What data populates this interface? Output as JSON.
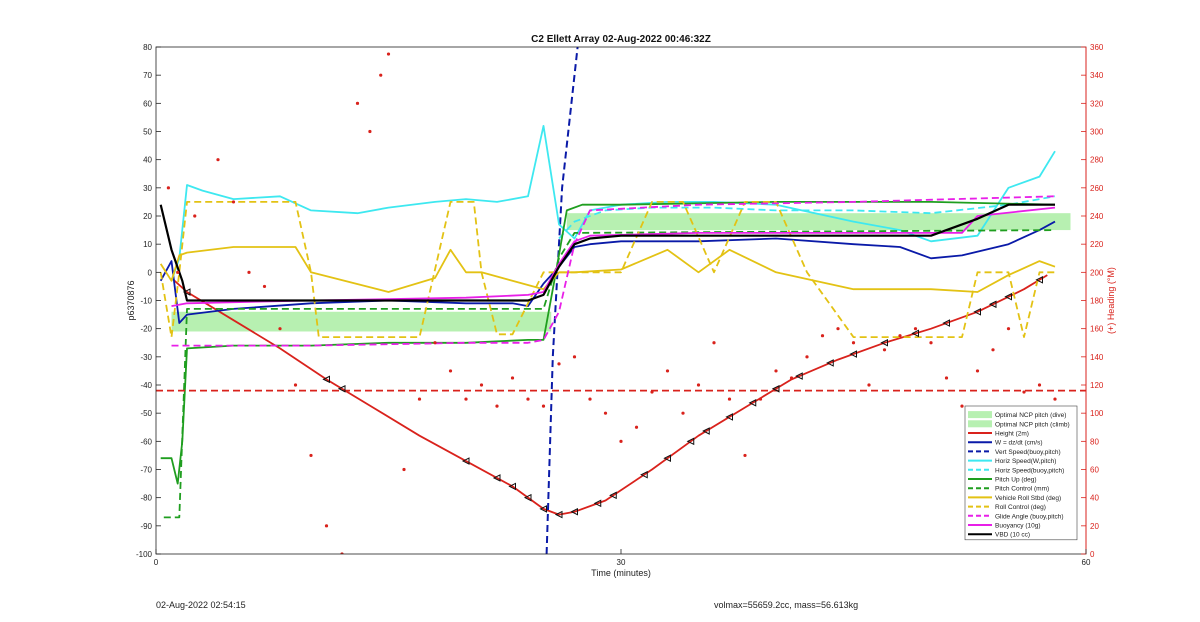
{
  "footer": {
    "left": "02-Aug-2022 02:54:15",
    "right": "volmax=55659.2cc, mass=56.613kg"
  },
  "chart_data": {
    "type": "line",
    "title": "C2 Ellett Array 02-Aug-2022 00:46:32Z",
    "xlabel": "Time (minutes)",
    "ylabel": "p6370876",
    "y2label": "(+) Heading (°M)",
    "xlim": [
      0,
      60
    ],
    "ylim": [
      -100,
      80
    ],
    "y2lim": [
      0,
      360
    ],
    "xticks": [
      0,
      30,
      60
    ],
    "yticks": [
      -100,
      -90,
      -80,
      -70,
      -60,
      -50,
      -40,
      -30,
      -20,
      -10,
      0,
      10,
      20,
      30,
      40,
      50,
      60,
      70,
      80
    ],
    "y2ticks": [
      0,
      20,
      40,
      60,
      80,
      100,
      120,
      140,
      160,
      180,
      200,
      220,
      240,
      260,
      280,
      300,
      320,
      340,
      360
    ],
    "grid": false,
    "legend_position": "bottom-right",
    "colors": {
      "left_axis": "#222222",
      "right_axis": "#d9221c",
      "green_band": "#b7f0b1",
      "red": "#d9221c",
      "blue": "#0a1aa8",
      "cyan": "#3ee8f0",
      "green": "#1f9e1f",
      "yellow": "#e3c214",
      "magenta": "#e81fe8",
      "black": "#000000"
    },
    "bands": [
      {
        "name": "Optimal NCP pitch (dive)",
        "x": [
          1,
          25.5
        ],
        "y": [
          -21,
          -14
        ]
      },
      {
        "name": "Optimal NCP pitch (climb)",
        "x": [
          26.5,
          59
        ],
        "y": [
          15,
          21
        ]
      }
    ],
    "series": [
      {
        "name": "Height (2m)",
        "style": "solid",
        "color": "#d9221c",
        "axis": "left",
        "x": [
          1,
          2,
          5,
          8,
          11,
          14,
          17,
          20,
          23,
          25,
          26,
          27,
          29,
          32,
          35,
          38,
          41,
          44,
          47,
          50,
          53,
          56,
          57.5
        ],
        "y": [
          -2,
          -7,
          -17,
          -27,
          -38,
          -48,
          -58,
          -67,
          -76,
          -84,
          -86,
          -85,
          -81,
          -70,
          -58,
          -48,
          -38,
          -31,
          -25,
          -20,
          -14,
          -6,
          -1
        ]
      },
      {
        "name": "W = dz/dt (cm/s)",
        "style": "solid",
        "color": "#0a1aa8",
        "axis": "left",
        "x": [
          0.3,
          1,
          1.5,
          2,
          5,
          10,
          15,
          20,
          23,
          24,
          25,
          26,
          27,
          28,
          30,
          35,
          40,
          45,
          48,
          50,
          52,
          55,
          57,
          58
        ],
        "y": [
          -3,
          4,
          -18,
          -15,
          -13,
          -11,
          -10,
          -11,
          -11,
          -12,
          -4,
          2,
          9,
          10,
          11,
          11,
          12,
          10,
          9,
          5,
          6,
          10,
          15,
          18
        ]
      },
      {
        "name": "Vert Speed(buoy,pitch)",
        "style": "dashed",
        "color": "#0a1aa8",
        "axis": "left",
        "x": [
          25.2,
          25.6,
          26.2,
          27.2
        ],
        "y": [
          -100,
          -30,
          30,
          80
        ]
      },
      {
        "name": "Horiz Speed(W,pitch)",
        "style": "solid",
        "color": "#3ee8f0",
        "axis": "left",
        "x": [
          1,
          1.5,
          2,
          3,
          5,
          8,
          10,
          13,
          15,
          18,
          20,
          22,
          24,
          25,
          26,
          27,
          28,
          30,
          33,
          36,
          40,
          45,
          48,
          50,
          53,
          55,
          57,
          58
        ],
        "y": [
          -3,
          5,
          31,
          29,
          26,
          27,
          22,
          21,
          23,
          25,
          26,
          25,
          27,
          52,
          17,
          12,
          22,
          24,
          25,
          25,
          24,
          18,
          15,
          11,
          13,
          30,
          34,
          43
        ]
      },
      {
        "name": "Horiz Speed(buoy,pitch)",
        "style": "dashed",
        "color": "#3ee8f0",
        "axis": "left",
        "x": [
          26,
          27,
          29,
          32,
          36,
          40,
          45,
          50,
          55,
          58
        ],
        "y": [
          12,
          18,
          22,
          23,
          23,
          22,
          22,
          21,
          24,
          27
        ]
      },
      {
        "name": "Pitch Up (deg)",
        "style": "solid",
        "color": "#1f9e1f",
        "axis": "left",
        "x": [
          0.3,
          1,
          1.4,
          1.7,
          2,
          5,
          10,
          15,
          20,
          24,
          25,
          25.8,
          26.5,
          27.5,
          30,
          40,
          50,
          58
        ],
        "y": [
          -66,
          -66,
          -75,
          -60,
          -27,
          -26,
          -26,
          -25,
          -25,
          -24,
          -24,
          0,
          22,
          24,
          24,
          25,
          25,
          24
        ]
      },
      {
        "name": "Pitch Control (mm)",
        "style": "dashed",
        "color": "#1f9e1f",
        "axis": "left",
        "x": [
          0.5,
          1.5,
          2,
          25,
          26,
          27,
          58
        ],
        "y": [
          -87,
          -87,
          -13,
          -13,
          5,
          14,
          15
        ]
      },
      {
        "name": "Vehicle Roll Stbd (deg)",
        "style": "solid",
        "color": "#e3c214",
        "axis": "left",
        "x": [
          0.3,
          1,
          1.5,
          2,
          5,
          9,
          10,
          15,
          18,
          19,
          20,
          21,
          25,
          26,
          27,
          30,
          33,
          35,
          37,
          40,
          45,
          48,
          50,
          53,
          55,
          57,
          58
        ],
        "y": [
          3,
          -3,
          6,
          7,
          9,
          9,
          0,
          -7,
          -2,
          8,
          0,
          0,
          -6,
          0,
          0,
          1,
          8,
          0,
          8,
          0,
          -6,
          -6,
          -6,
          -7,
          -1,
          4,
          2
        ]
      },
      {
        "name": "Roll Control (deg)",
        "style": "dashed",
        "color": "#e3c214",
        "axis": "left",
        "x": [
          0.3,
          1,
          1.5,
          2,
          9,
          10,
          10.5,
          17,
          19,
          20.5,
          21,
          22,
          23,
          25,
          26,
          27,
          30,
          32,
          34,
          36,
          38,
          40,
          42,
          45,
          48,
          50,
          52,
          53,
          55,
          56,
          57,
          58
        ],
        "y": [
          0,
          -23,
          0,
          25,
          25,
          0,
          -23,
          -23,
          25,
          25,
          0,
          -22,
          -22,
          0,
          0,
          0,
          0,
          25,
          25,
          0,
          25,
          25,
          0,
          -23,
          -23,
          -23,
          -23,
          0,
          0,
          -23,
          0,
          0
        ]
      },
      {
        "name": "Glide Angle (buoy,pitch)",
        "style": "dashed",
        "color": "#e81fe8",
        "axis": "left",
        "x": [
          1,
          2,
          10,
          20,
          24,
          25,
          26,
          27,
          28,
          35,
          45,
          58
        ],
        "y": [
          -26,
          -26,
          -26,
          -25,
          -25,
          -24,
          -14,
          10,
          22,
          24,
          25,
          27
        ]
      },
      {
        "name": "Buoyancy (10g)",
        "style": "solid",
        "color": "#e81fe8",
        "axis": "left",
        "x": [
          1,
          2,
          10,
          20,
          24,
          25,
          26,
          27,
          28,
          35,
          45,
          52,
          53,
          58
        ],
        "y": [
          -12,
          -11,
          -10,
          -9,
          -8,
          -7,
          3,
          11,
          13,
          14,
          14,
          14,
          20,
          23
        ]
      },
      {
        "name": "VBD (10 cc)",
        "style": "solid",
        "color": "#000000",
        "axis": "left",
        "x": [
          0.3,
          1,
          1.7,
          2,
          10,
          20,
          24,
          25,
          26,
          27,
          28,
          30,
          40,
          48,
          50,
          53,
          55,
          58
        ],
        "y": [
          24,
          8,
          -3,
          -10,
          -10,
          -10,
          -10,
          -8,
          2,
          10,
          12,
          13,
          13,
          13,
          13,
          19,
          24,
          24
        ]
      },
      {
        "name": "",
        "style": "dashed",
        "color": "#d9221c",
        "axis": "left",
        "x": [
          0,
          60
        ],
        "y": [
          -42,
          -42
        ]
      },
      {
        "name": "",
        "style": "dotted",
        "color": "#d9221c",
        "axis": "right",
        "x": [
          0.8,
          1.4,
          2.5,
          4,
          5,
          6,
          7,
          8,
          9,
          10,
          11,
          12,
          13,
          13.8,
          14.5,
          15,
          16,
          17,
          18,
          19,
          20,
          21,
          22,
          23,
          24,
          25,
          26,
          27,
          28,
          29,
          30,
          31,
          32,
          33,
          34,
          35,
          36,
          37,
          38,
          39,
          40,
          41,
          42,
          43,
          44,
          45,
          46,
          47,
          48,
          49,
          50,
          51,
          52,
          53,
          54,
          55,
          56,
          57,
          58
        ],
        "y": [
          260,
          200,
          240,
          280,
          250,
          200,
          190,
          160,
          120,
          70,
          20,
          0,
          320,
          300,
          340,
          355,
          60,
          110,
          150,
          130,
          110,
          120,
          105,
          125,
          110,
          105,
          135,
          140,
          110,
          100,
          80,
          90,
          115,
          130,
          100,
          120,
          150,
          110,
          70,
          110,
          130,
          125,
          140,
          155,
          160,
          150,
          120,
          145,
          155,
          160,
          150,
          125,
          105,
          130,
          145,
          160,
          115,
          120,
          110
        ]
      }
    ]
  }
}
